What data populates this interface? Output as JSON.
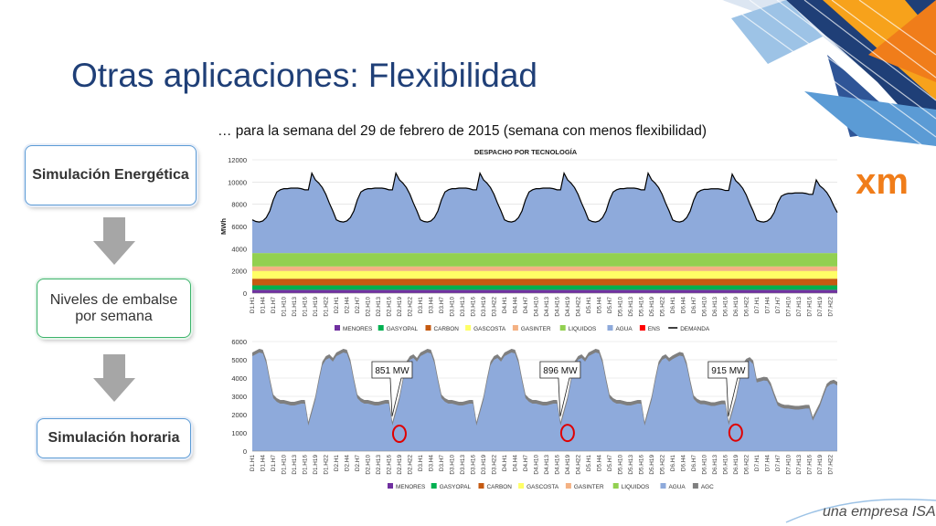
{
  "page": {
    "title": "Otras aplicaciones: Flexibilidad",
    "subtitle": "… para la semana del 29 de febrero de 2015 (semana con menos flexibilidad)",
    "footer": "una empresa ISA",
    "logo_text": "xm"
  },
  "flow": {
    "box1": "Simulación Energética",
    "box2": "Niveles de embalse por semana",
    "box3": "Simulación horaria"
  },
  "colors": {
    "title": "#1f3f77",
    "agua": "#8eaadb",
    "demanda": "#000000",
    "logo": "#f07d1a"
  },
  "chart_data": [
    {
      "type": "area",
      "title": "DESPACHO POR TECNOLOGÍA",
      "ylabel": "MWh",
      "ylim": [
        0,
        12000
      ],
      "yticks": [
        0,
        2000,
        4000,
        6000,
        8000,
        10000,
        12000
      ],
      "xticks": [
        "D1.H1",
        "D1.H4",
        "D1.H7",
        "D1.H10",
        "D1.H13",
        "D1.H16",
        "D1.H19",
        "D1.H22",
        "D2.H1",
        "D2.H4",
        "D2.H7",
        "D2.H10",
        "D2.H13",
        "D2.H16",
        "D2.H19",
        "D2.H22",
        "D3.H1",
        "D3.H4",
        "D3.H7",
        "D3.H10",
        "D3.H13",
        "D3.H16",
        "D3.H19",
        "D3.H22",
        "D4.H1",
        "D4.H4",
        "D4.H7",
        "D4.H10",
        "D4.H13",
        "D4.H16",
        "D4.H19",
        "D4.H22",
        "D5.H1",
        "D5.H4",
        "D5.H7",
        "D5.H10",
        "D5.H13",
        "D5.H16",
        "D5.H19",
        "D5.H22",
        "D6.H1",
        "D6.H4",
        "D6.H7",
        "D6.H10",
        "D6.H13",
        "D6.H16",
        "D6.H19",
        "D6.H22",
        "D7.H1",
        "D7.H4",
        "D7.H7",
        "D7.H10",
        "D7.H13",
        "D7.H16",
        "D7.H19",
        "D7.H22"
      ],
      "legend": [
        {
          "name": "MENORES",
          "color": "#7030a0",
          "kind": "box"
        },
        {
          "name": "GASYOPAL",
          "color": "#00b050",
          "kind": "box"
        },
        {
          "name": "CARBON",
          "color": "#c55a11",
          "kind": "box"
        },
        {
          "name": "GASCOSTA",
          "color": "#ffff66",
          "kind": "box"
        },
        {
          "name": "GASINTER",
          "color": "#f4b183",
          "kind": "box"
        },
        {
          "name": "LIQUIDOS",
          "color": "#92d050",
          "kind": "box"
        },
        {
          "name": "AGUA",
          "color": "#8eaadb",
          "kind": "box"
        },
        {
          "name": "ENS",
          "color": "#ff0000",
          "kind": "box"
        },
        {
          "name": "DEMANDA",
          "color": "#000000",
          "kind": "line"
        }
      ],
      "stack_bands": [
        {
          "name": "MENORES",
          "color": "#7030a0",
          "value": 300
        },
        {
          "name": "GASYOPAL",
          "color": "#00b050",
          "value": 400
        },
        {
          "name": "CARBON",
          "color": "#c55a11",
          "value": 600
        },
        {
          "name": "GASCOSTA",
          "color": "#ffff66",
          "value": 700
        },
        {
          "name": "GASINTER",
          "color": "#f4b183",
          "value": 400
        },
        {
          "name": "LIQUIDOS",
          "color": "#92d050",
          "value": 1200
        }
      ],
      "demand_day_profile": [
        6600,
        6450,
        6400,
        6500,
        6800,
        7400,
        8400,
        9100,
        9300,
        9400,
        9400,
        9450,
        9450,
        9450,
        9400,
        9300,
        9300,
        10800,
        10200,
        9900,
        9500,
        8900,
        8100,
        7400
      ],
      "days_scale": [
        1.0,
        1.0,
        1.0,
        1.0,
        1.0,
        0.98,
        0.86
      ]
    },
    {
      "type": "area",
      "title": "",
      "ylim": [
        0,
        6000
      ],
      "yticks": [
        0,
        1000,
        2000,
        3000,
        4000,
        5000,
        6000
      ],
      "xticks": [
        "D1.H1",
        "D1.H4",
        "D1.H7",
        "D1.H10",
        "D1.H13",
        "D1.H16",
        "D1.H19",
        "D1.H22",
        "D2.H1",
        "D2.H4",
        "D2.H7",
        "D2.H10",
        "D2.H13",
        "D2.H16",
        "D2.H19",
        "D2.H22",
        "D3.H1",
        "D3.H4",
        "D3.H7",
        "D3.H10",
        "D3.H13",
        "D3.H16",
        "D3.H19",
        "D3.H22",
        "D4.H1",
        "D4.H4",
        "D4.H7",
        "D4.H10",
        "D4.H13",
        "D4.H16",
        "D4.H19",
        "D4.H22",
        "D5.H1",
        "D5.H4",
        "D5.H7",
        "D5.H10",
        "D5.H13",
        "D5.H16",
        "D5.H19",
        "D5.H22",
        "D6.H1",
        "D6.H4",
        "D6.H7",
        "D6.H10",
        "D6.H13",
        "D6.H16",
        "D6.H19",
        "D6.H22",
        "D7.H1",
        "D7.H4",
        "D7.H7",
        "D7.H10",
        "D7.H13",
        "D7.H16",
        "D7.H19",
        "D7.H22"
      ],
      "legend": [
        {
          "name": "MENORES",
          "color": "#7030a0"
        },
        {
          "name": "GASYOPAL",
          "color": "#00b050"
        },
        {
          "name": "CARBON",
          "color": "#c55a11"
        },
        {
          "name": "GASCOSTA",
          "color": "#ffff66"
        },
        {
          "name": "GASINTER",
          "color": "#f4b183"
        },
        {
          "name": "LIQUIDOS",
          "color": "#92d050"
        },
        {
          "name": "AGUA",
          "color": "#8eaadb"
        },
        {
          "name": "AGC",
          "color": "#808080"
        }
      ],
      "agua_day_profile": [
        5200,
        5300,
        5400,
        5350,
        4800,
        3800,
        2900,
        2700,
        2600,
        2600,
        2550,
        2500,
        2500,
        2550,
        2600,
        2600,
        1400,
        2100,
        2800,
        3800,
        4700,
        5000,
        5100,
        4900
      ],
      "agc_offset": 200,
      "annotations": [
        {
          "label": "851 MW",
          "x_index": 42,
          "value": 851
        },
        {
          "label": "896 MW",
          "x_index": 90,
          "value": 896
        },
        {
          "label": "915 MW",
          "x_index": 138,
          "value": 915
        }
      ]
    }
  ]
}
